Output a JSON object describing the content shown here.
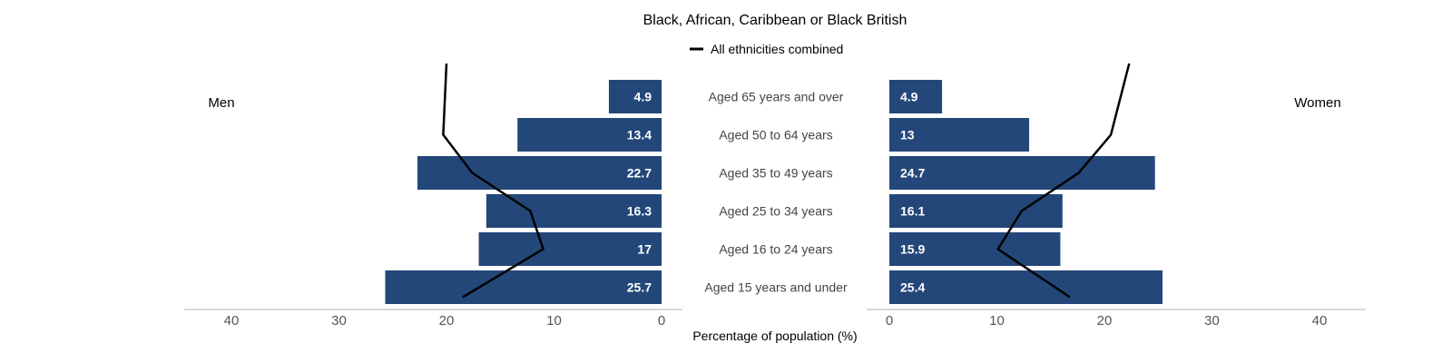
{
  "chart_data": {
    "type": "bar",
    "orientation": "horizontal",
    "layout": "population-pyramid",
    "title": "Black, African, Caribbean or Black British",
    "legend": {
      "line_label": "All ethnicities combined",
      "position": "top-center"
    },
    "xlabel": "Percentage of population (%)",
    "xlim": [
      0,
      40
    ],
    "x_ticks": [
      0,
      10,
      20,
      30,
      40
    ],
    "categories": [
      "Aged 65 years and over",
      "Aged 50 to 64 years",
      "Aged 35 to 49 years",
      "Aged 25 to 34 years",
      "Aged 16 to 24 years",
      "Aged 15 years and under"
    ],
    "left_panel_label": "Men",
    "right_panel_label": "Women",
    "series": [
      {
        "panel": "left",
        "kind": "bar",
        "values": [
          4.9,
          13.4,
          22.7,
          16.3,
          17,
          25.7
        ]
      },
      {
        "panel": "left",
        "kind": "line",
        "values": [
          20.0,
          20.3,
          17.6,
          12.2,
          11.0,
          18.5
        ]
      },
      {
        "panel": "right",
        "kind": "bar",
        "values": [
          4.9,
          13,
          24.7,
          16.1,
          15.9,
          25.4
        ]
      },
      {
        "panel": "right",
        "kind": "line",
        "values": [
          22.3,
          20.6,
          17.6,
          12.3,
          10.1,
          16.8
        ]
      }
    ],
    "colors": {
      "bar": "#24477a",
      "line": "#000000",
      "axis": "#cccccc"
    },
    "grid": false
  }
}
